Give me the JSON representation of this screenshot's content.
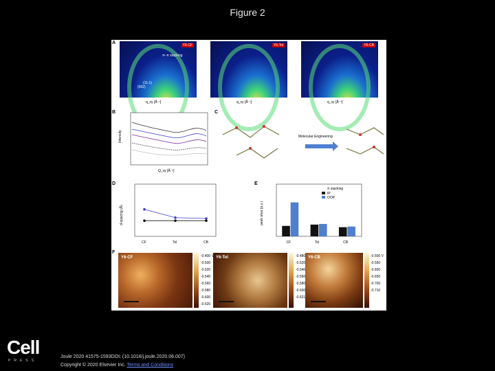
{
  "page": {
    "title": "Figure 2"
  },
  "panels": {
    "a": {
      "letter": "A",
      "tags": [
        "Y6-CF",
        "Y6-Tol",
        "Y6-CB"
      ],
      "pi_label": "π–π stacking",
      "peak1": "(11-1)",
      "peak2": "(002)",
      "xaxis": "q_xy [Å⁻¹]",
      "yaxis": "q_z [Å⁻¹]"
    },
    "b": {
      "letter": "B",
      "xaxis": "Q_xy [Å⁻¹]",
      "yaxis": "Intensity"
    },
    "c": {
      "letter": "C",
      "arrow_label": "Molecular Engineering"
    },
    "d": {
      "letter": "D",
      "ylabel": "d-spacing (Å)",
      "xlabels": [
        "CF",
        "Tol",
        "CB"
      ]
    },
    "e": {
      "letter": "E",
      "ylabel": "peak area (a.u.)",
      "xlabels": [
        "CF",
        "Tol",
        "CB"
      ],
      "legend": [
        "π stacking",
        "IP",
        "OOP"
      ]
    },
    "f": {
      "letter": "F",
      "tags": [
        "Y6-CF",
        "Y6-Tol",
        "Y6-CB"
      ],
      "scales": [
        [
          "-0.400 V",
          "-0.500",
          "-0.520",
          "-0.540",
          "-0.560",
          "-0.580",
          "-0.600",
          "-0.620"
        ],
        [
          "-0.480 V",
          "-0.520",
          "-0.540",
          "-0.560",
          "-0.580",
          "-0.600",
          "-0.621"
        ],
        [
          "-0.500 V",
          "-0.550",
          "-0.600",
          "-0.650",
          "-0.700",
          "-0.710"
        ]
      ]
    }
  },
  "chart_data": [
    {
      "type": "line",
      "title": "",
      "categories": [
        "CF",
        "Tol",
        "CB"
      ],
      "series": [
        {
          "name": "d-spacing",
          "values": [
            3.6,
            3.6,
            3.6
          ]
        },
        {
          "name": "peak area",
          "values": [
            6.2,
            4.3,
            4.1
          ]
        }
      ]
    },
    {
      "type": "bar",
      "title": "",
      "categories": [
        "CF",
        "Tol",
        "CB"
      ],
      "series": [
        {
          "name": "IP",
          "values": [
            80,
            90,
            70
          ]
        },
        {
          "name": "OOP",
          "values": [
            260,
            95,
            75
          ]
        }
      ]
    }
  ],
  "footer": {
    "citation": "Joule 2020 41575-1593DOI: (10.1016/j.joule.2020.06.007)",
    "copyright": "Copyright © 2020 Elsevier Inc.",
    "link": "Terms and Conditions"
  },
  "brand": {
    "logo": "Cell",
    "press": "PRESS"
  }
}
